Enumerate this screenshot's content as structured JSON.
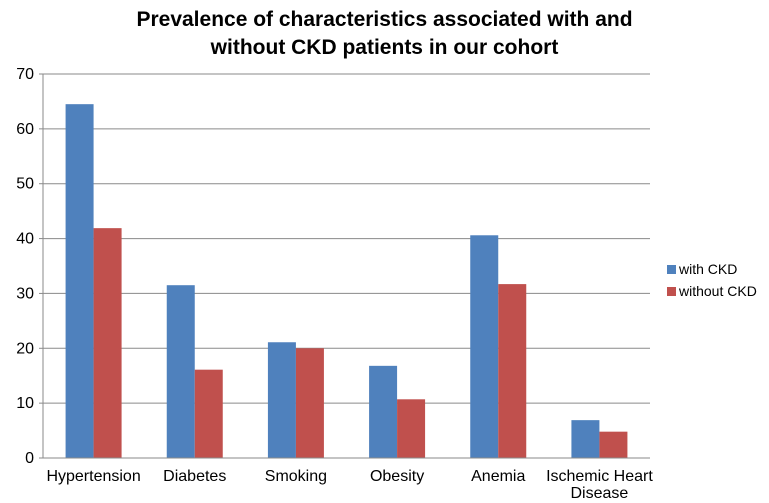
{
  "chart_data": {
    "type": "bar",
    "title_lines": [
      "Prevalence of characteristics associated with and",
      "without CKD patients in our cohort"
    ],
    "categories": [
      "Hypertension",
      "Diabetes",
      "Smoking",
      "Obesity",
      "Anemia",
      "Ischemic Heart Disease"
    ],
    "category_lines": [
      [
        "Hypertension"
      ],
      [
        "Diabetes"
      ],
      [
        "Smoking"
      ],
      [
        "Obesity"
      ],
      [
        "Anemia"
      ],
      [
        "Ischemic Heart",
        "Disease"
      ]
    ],
    "series": [
      {
        "name": "with CKD",
        "color": "#4F81BD",
        "values": [
          64.5,
          31.5,
          21.1,
          16.8,
          40.6,
          6.9
        ]
      },
      {
        "name": "without CKD",
        "color": "#C0504D",
        "values": [
          41.9,
          16.1,
          20.0,
          10.7,
          31.7,
          4.8
        ]
      }
    ],
    "ylim": [
      0,
      70
    ],
    "yticks": [
      0,
      10,
      20,
      30,
      40,
      50,
      60,
      70
    ],
    "grid": true,
    "legend_position": "right"
  }
}
